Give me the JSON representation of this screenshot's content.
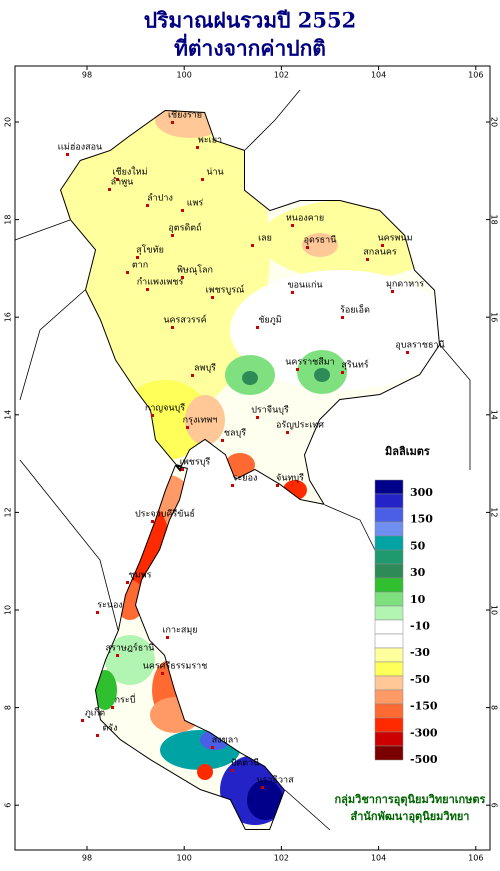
{
  "header": {
    "title_line1": "ปริมาณฝนรวมปี  2552",
    "title_line2": "ที่ต่างจากค่าปกติ"
  },
  "axes": {
    "lon_ticks": [
      98,
      100,
      102,
      104,
      106
    ],
    "lat_ticks": [
      6,
      8,
      10,
      12,
      14,
      16,
      18,
      20
    ]
  },
  "legend": {
    "title": "มิลลิเมตร",
    "swatches": [
      "#00008b",
      "#2323c8",
      "#4b5fe6",
      "#6f8ff0",
      "#00a3a3",
      "#1f9a6e",
      "#2e8b57",
      "#2fbf2f",
      "#7ee07e",
      "#b2f5b2",
      "#ffffff",
      "#ffffff",
      "#ffff9e",
      "#ffff5a",
      "#ffc896",
      "#ff9966",
      "#ff6a33",
      "#ff2a00",
      "#cc0000",
      "#7a0000"
    ],
    "labels": [
      "300",
      "150",
      "50",
      "30",
      "10",
      "-10",
      "-30",
      "-50",
      "-150",
      "-300",
      "-500"
    ]
  },
  "places": [
    "เเม่ฮ่องสอน",
    "เชียงราย",
    "พะเยา",
    "เชียงใหม่",
    "ลำพูน",
    "ลำปาง",
    "น่าน",
    "แพร่",
    "อุตรดิตถ์",
    "ตาก",
    "พิษณุโลก",
    "สุโขทัย",
    "กำแพงเพชร",
    "เพชรบูรณ์",
    "นครสวรรค์",
    "หนองคาย",
    "อุดรธานี",
    "สกลนคร",
    "นครพนม",
    "เลย",
    "ขอนแก่น",
    "มุกดาหาร",
    "ชัยภูมิ",
    "ร้อยเอ็ด",
    "นครราชสีมา",
    "สุรินทร์",
    "อุบลราชธานี",
    "ลพบุรี",
    "กาญจนบุรี",
    "กรุงเทพฯ",
    "ปราจีนบุรี",
    "อรัญประเทศ",
    "ชลบุรี",
    "ระยอง",
    "จันทบุรี",
    "เพชรบุรี",
    "ประจวบคีรีขันธ์",
    "ชุมพร",
    "ระนอง",
    "เกาะสมุย",
    "สุราษฎร์ธานี",
    "ภูเก็ต",
    "นครศรีธรรมราช",
    "กระบี่",
    "ตรัง",
    "สงขลา",
    "ปัตตานี",
    "นราธิวาส"
  ],
  "credits": [
    "กลุ่มวิชาการอุตุนิยมวิทยาเกษตร",
    "สำนักพัฒนาอุตุนิยมวิทยา"
  ]
}
